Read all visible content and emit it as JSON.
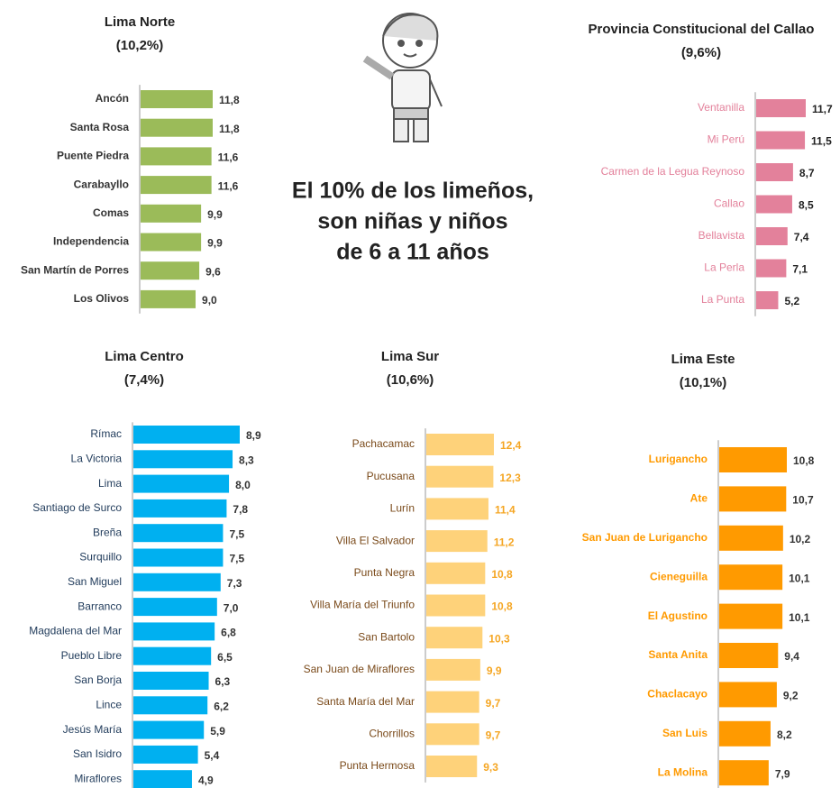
{
  "headline": [
    "El 10% de los limeños,",
    "son niñas y niños",
    "de 6 a 11 años"
  ],
  "chart_data": [
    {
      "type": "bar",
      "orientation": "horizontal",
      "title": "Lima Norte",
      "subtitle": "(10,2%)",
      "categories": [
        "Ancón",
        "Santa Rosa",
        "Puente Piedra",
        "Carabayllo",
        "Comas",
        "Independencia",
        "San Martín de Porres",
        "Los Olivos"
      ],
      "values": [
        11.8,
        11.8,
        11.6,
        11.6,
        9.9,
        9.9,
        9.6,
        9.0
      ],
      "value_labels": [
        "11,8",
        "11,8",
        "11,6",
        "11,6",
        "9,9",
        "9,9",
        "9,6",
        "9,0"
      ],
      "color": "#9bbb59",
      "label_color": "#333333",
      "value_color": "#333333"
    },
    {
      "type": "bar",
      "orientation": "horizontal",
      "title": "Provincia Constitucional del Callao",
      "subtitle": "(9,6%)",
      "categories": [
        "Ventanilla",
        "Mi Perú",
        "Carmen de la Legua Reynoso",
        "Callao",
        "Bellavista",
        "La Perla",
        "La Punta"
      ],
      "values": [
        11.7,
        11.5,
        8.7,
        8.5,
        7.4,
        7.1,
        5.2
      ],
      "value_labels": [
        "11,7",
        "11,5",
        "8,7",
        "8,5",
        "7,4",
        "7,1",
        "5,2"
      ],
      "color": "#e3819b",
      "label_color": "#e3819b",
      "value_color": "#222222"
    },
    {
      "type": "bar",
      "orientation": "horizontal",
      "title": "Lima Centro",
      "subtitle": "(7,4%)",
      "categories": [
        "Rímac",
        "La Victoria",
        "Lima",
        "Santiago de Surco",
        "Breña",
        "Surquillo",
        "San Miguel",
        "Barranco",
        "Magdalena del Mar",
        "Pueblo Libre",
        "San Borja",
        "Lince",
        "Jesús María",
        "San Isidro",
        "Miraflores"
      ],
      "values": [
        8.9,
        8.3,
        8.0,
        7.8,
        7.5,
        7.5,
        7.3,
        7.0,
        6.8,
        6.5,
        6.3,
        6.2,
        5.9,
        5.4,
        4.9
      ],
      "value_labels": [
        "8,9",
        "8,3",
        "8,0",
        "7,8",
        "7,5",
        "7,5",
        "7,3",
        "7,0",
        "6,8",
        "6,5",
        "6,3",
        "6,2",
        "5,9",
        "5,4",
        "4,9"
      ],
      "color": "#00b0f0",
      "label_color": "#1f3a5a",
      "value_color": "#333333"
    },
    {
      "type": "bar",
      "orientation": "horizontal",
      "title": "Lima Sur",
      "subtitle": "(10,6%)",
      "categories": [
        "Pachacamac",
        "Pucusana",
        "Lurín",
        "Villa El Salvador",
        "Punta Negra",
        "Villa María del Triunfo",
        "San Bartolo",
        "San Juan de Miraflores",
        "Santa María del Mar",
        "Chorrillos",
        "Punta Hermosa"
      ],
      "values": [
        12.4,
        12.3,
        11.4,
        11.2,
        10.8,
        10.8,
        10.3,
        9.9,
        9.7,
        9.7,
        9.3
      ],
      "value_labels": [
        "12,4",
        "12,3",
        "11,4",
        "11,2",
        "10,8",
        "10,8",
        "10,3",
        "9,9",
        "9,7",
        "9,7",
        "9,3"
      ],
      "color": "#fed27a",
      "label_color": "#7a4a1a",
      "value_color": "#f5a623"
    },
    {
      "type": "bar",
      "orientation": "horizontal",
      "title": "Lima Este",
      "subtitle": "(10,1%)",
      "categories": [
        "Lurigancho",
        "Ate",
        "San Juan de Lurigancho",
        "Cieneguilla",
        "El Agustino",
        "Santa Anita",
        "Chaclacayo",
        "San Luis",
        "La Molina"
      ],
      "values": [
        10.8,
        10.7,
        10.2,
        10.1,
        10.1,
        9.4,
        9.2,
        8.2,
        7.9
      ],
      "value_labels": [
        "10,8",
        "10,7",
        "10,2",
        "10,1",
        "10,1",
        "9,4",
        "9,2",
        "8,2",
        "7,9"
      ],
      "color": "#ff9a00",
      "label_color": "#ff9a00",
      "value_color": "#333333"
    }
  ]
}
